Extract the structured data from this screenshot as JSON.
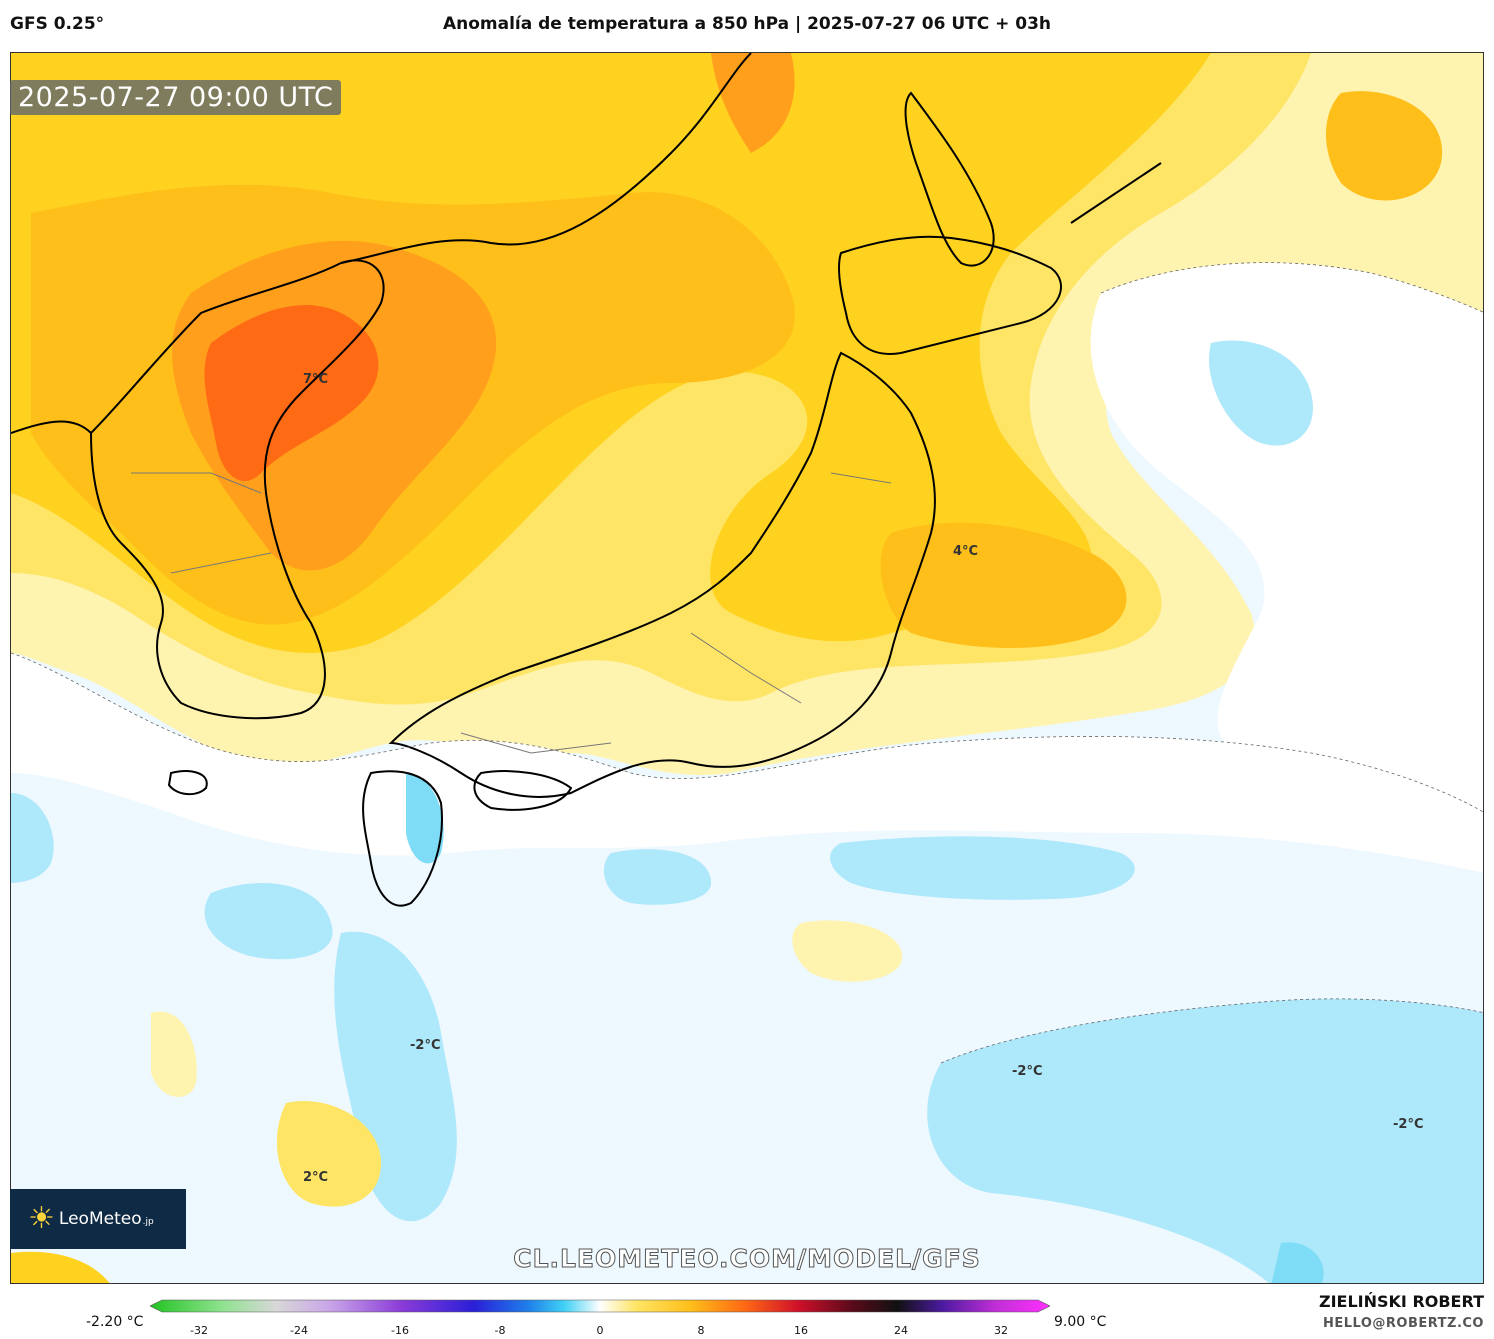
{
  "header": {
    "model": "GFS 0.25°",
    "title": "Anomalía de temperatura a 850 hPa | 2025-07-27 06 UTC + 03h"
  },
  "map": {
    "valid_time": "2025-07-27 09:00 UTC",
    "watermark": "CL.LEOMETEO.COM/MODEL/GFS",
    "logo_text": "LeoMeteo",
    "logo_suffix": ".jp",
    "contour_labels": [
      {
        "text": "7°C"
      },
      {
        "text": "4°C"
      },
      {
        "text": "-2°C"
      },
      {
        "text": "-2°C"
      },
      {
        "text": "-2°C"
      },
      {
        "text": "2°C"
      }
    ],
    "colors": {
      "warm_light": "#fff3b0",
      "warm_mid": "#ffe566",
      "warm_yellow": "#ffd21f",
      "warm_orange_light": "#ffbf1a",
      "warm_orange": "#ff9f1c",
      "warm_red": "#ff6a14",
      "cool_very_light": "#eef8ff",
      "cool_light": "#aee8fb",
      "cool_mid": "#7fdcf7",
      "neutral": "#ffffff",
      "coast": "#000000",
      "border": "#777777"
    }
  },
  "colorbar": {
    "min_label": "-2.20 °C",
    "max_label": "9.00 °C",
    "ticks": [
      "-32",
      "-24",
      "-16",
      "-8",
      "0",
      "8",
      "16",
      "24",
      "32"
    ]
  },
  "credits": {
    "author": "ZIELIŃSKI ROBERT",
    "email": "HELLO@ROBERTZ.CO"
  }
}
